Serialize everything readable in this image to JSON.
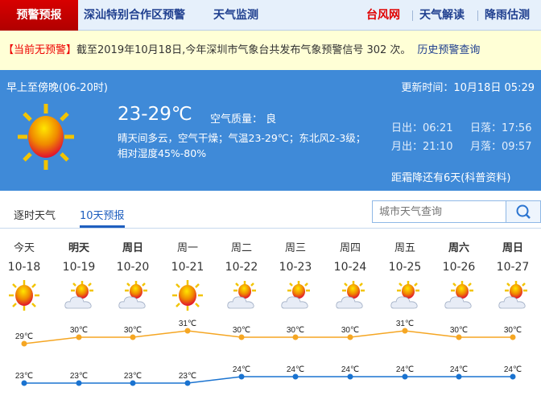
{
  "nav": {
    "active": "预警预报",
    "items": [
      "深汕特别合作区预警",
      "天气监测"
    ],
    "right": [
      {
        "label": "台风网",
        "color": "#e00000"
      },
      {
        "label": "天气解读",
        "color": "#1f3f8f"
      },
      {
        "label": "降雨估测",
        "color": "#1f3f8f"
      }
    ]
  },
  "warning": {
    "status": "【当前无预警】",
    "text": "截至2019年10月18日,今年深圳市气象台共发布气象预警信号 302 次。",
    "link": "历史预警查询"
  },
  "today": {
    "period": "早上至傍晚(06-20时)",
    "updated": "更新时间：10月18日 05:29",
    "temp": "23-29℃",
    "aqi": "空气质量： 良",
    "desc": "晴天间多云，空气干燥；气温23-29℃；东北风2-3级；相对湿度45%-80%",
    "sunrise": "日出：06:21",
    "sunset": "日落：17:56",
    "moonrise": "月出：21:10",
    "moonset": "月落：09:57",
    "frost": "距霜降还有6天(科普资料)",
    "icon": "sunny-icon"
  },
  "tabs": [
    "逐时天气",
    "10天预报"
  ],
  "search": {
    "placeholder": "城市天气查询"
  },
  "forecast": {
    "days": [
      {
        "day": "今天",
        "date": "10-18",
        "icon": "sunny",
        "bold": false
      },
      {
        "day": "明天",
        "date": "10-19",
        "icon": "partly-cloudy",
        "bold": true
      },
      {
        "day": "周日",
        "date": "10-20",
        "icon": "partly-cloudy",
        "bold": true
      },
      {
        "day": "周一",
        "date": "10-21",
        "icon": "sunny",
        "bold": false
      },
      {
        "day": "周二",
        "date": "10-22",
        "icon": "partly-cloudy",
        "bold": false
      },
      {
        "day": "周三",
        "date": "10-23",
        "icon": "partly-cloudy",
        "bold": false
      },
      {
        "day": "周四",
        "date": "10-24",
        "icon": "partly-cloudy",
        "bold": false
      },
      {
        "day": "周五",
        "date": "10-25",
        "icon": "partly-cloudy",
        "bold": false
      },
      {
        "day": "周六",
        "date": "10-26",
        "icon": "partly-cloudy",
        "bold": true
      },
      {
        "day": "周日",
        "date": "10-27",
        "icon": "partly-cloudy",
        "bold": true
      }
    ]
  },
  "chart_data": {
    "type": "line",
    "categories": [
      "10-18",
      "10-19",
      "10-20",
      "10-21",
      "10-22",
      "10-23",
      "10-24",
      "10-25",
      "10-26",
      "10-27"
    ],
    "unit": "℃",
    "series": [
      {
        "key": "high",
        "values": [
          29,
          30,
          30,
          31,
          30,
          30,
          30,
          31,
          30,
          30
        ],
        "color": "#f5a623"
      },
      {
        "key": "low",
        "values": [
          23,
          23,
          23,
          23,
          24,
          24,
          24,
          24,
          24,
          24
        ],
        "color": "#1a73d0"
      }
    ]
  }
}
